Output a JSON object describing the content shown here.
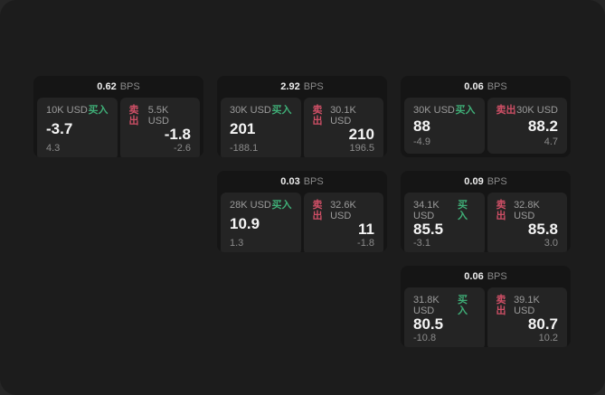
{
  "labels": {
    "buy": "买入",
    "sell": "卖出",
    "bps": "BPS"
  },
  "colors": {
    "buy": "#3fae77",
    "sell": "#cf4f66",
    "window_bg": "#1c1c1c",
    "card_bg": "#151515",
    "panel_bg": "#242424"
  },
  "cards": [
    {
      "bps": "0.62",
      "buy": {
        "notional": "10K USD",
        "price": "-3.7",
        "delta": "4.3"
      },
      "sell": {
        "notional": "5.5K USD",
        "price": "-1.8",
        "delta": "-2.6"
      }
    },
    {
      "bps": "2.92",
      "buy": {
        "notional": "30K USD",
        "price": "201",
        "delta": "-188.1"
      },
      "sell": {
        "notional": "30.1K USD",
        "price": "210",
        "delta": "196.5"
      }
    },
    {
      "bps": "0.06",
      "buy": {
        "notional": "30K USD",
        "price": "88",
        "delta": "-4.9"
      },
      "sell": {
        "notional": "30K USD",
        "price": "88.2",
        "delta": "4.7"
      }
    },
    {
      "bps": "0.03",
      "buy": {
        "notional": "28K USD",
        "price": "10.9",
        "delta": "1.3"
      },
      "sell": {
        "notional": "32.6K USD",
        "price": "11",
        "delta": "-1.8"
      }
    },
    {
      "bps": "0.09",
      "buy": {
        "notional": "34.1K USD",
        "price": "85.5",
        "delta": "-3.1"
      },
      "sell": {
        "notional": "32.8K USD",
        "price": "85.8",
        "delta": "3.0"
      }
    },
    {
      "bps": "0.06",
      "buy": {
        "notional": "31.8K USD",
        "price": "80.5",
        "delta": "-10.8"
      },
      "sell": {
        "notional": "39.1K USD",
        "price": "80.7",
        "delta": "10.2"
      }
    }
  ]
}
